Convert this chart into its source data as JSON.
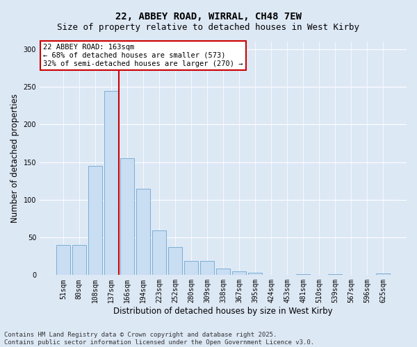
{
  "title": "22, ABBEY ROAD, WIRRAL, CH48 7EW",
  "subtitle": "Size of property relative to detached houses in West Kirby",
  "xlabel": "Distribution of detached houses by size in West Kirby",
  "ylabel": "Number of detached properties",
  "categories": [
    "51sqm",
    "80sqm",
    "108sqm",
    "137sqm",
    "166sqm",
    "194sqm",
    "223sqm",
    "252sqm",
    "280sqm",
    "309sqm",
    "338sqm",
    "367sqm",
    "395sqm",
    "424sqm",
    "453sqm",
    "481sqm",
    "510sqm",
    "539sqm",
    "567sqm",
    "596sqm",
    "625sqm"
  ],
  "values": [
    40,
    40,
    145,
    245,
    155,
    115,
    59,
    37,
    19,
    19,
    9,
    5,
    3,
    0,
    0,
    1,
    0,
    1,
    0,
    0,
    2
  ],
  "bar_color": "#c9ddf3",
  "bar_edge_color": "#7aafd4",
  "vline_color": "#cc0000",
  "vline_index": 3.5,
  "annotation_text": "22 ABBEY ROAD: 163sqm\n← 68% of detached houses are smaller (573)\n32% of semi-detached houses are larger (270) →",
  "annotation_box_facecolor": "#ffffff",
  "annotation_box_edgecolor": "#cc0000",
  "ylim": [
    0,
    310
  ],
  "yticks": [
    0,
    50,
    100,
    150,
    200,
    250,
    300
  ],
  "background_color": "#dde8f5",
  "plot_bg_color": "#dde8f5",
  "grid_color": "#ffffff",
  "footer_line1": "Contains HM Land Registry data © Crown copyright and database right 2025.",
  "footer_line2": "Contains public sector information licensed under the Open Government Licence v3.0.",
  "title_fontsize": 10,
  "subtitle_fontsize": 9,
  "tick_fontsize": 7,
  "ylabel_fontsize": 8.5,
  "xlabel_fontsize": 8.5,
  "footer_fontsize": 6.5,
  "annotation_fontsize": 7.5
}
